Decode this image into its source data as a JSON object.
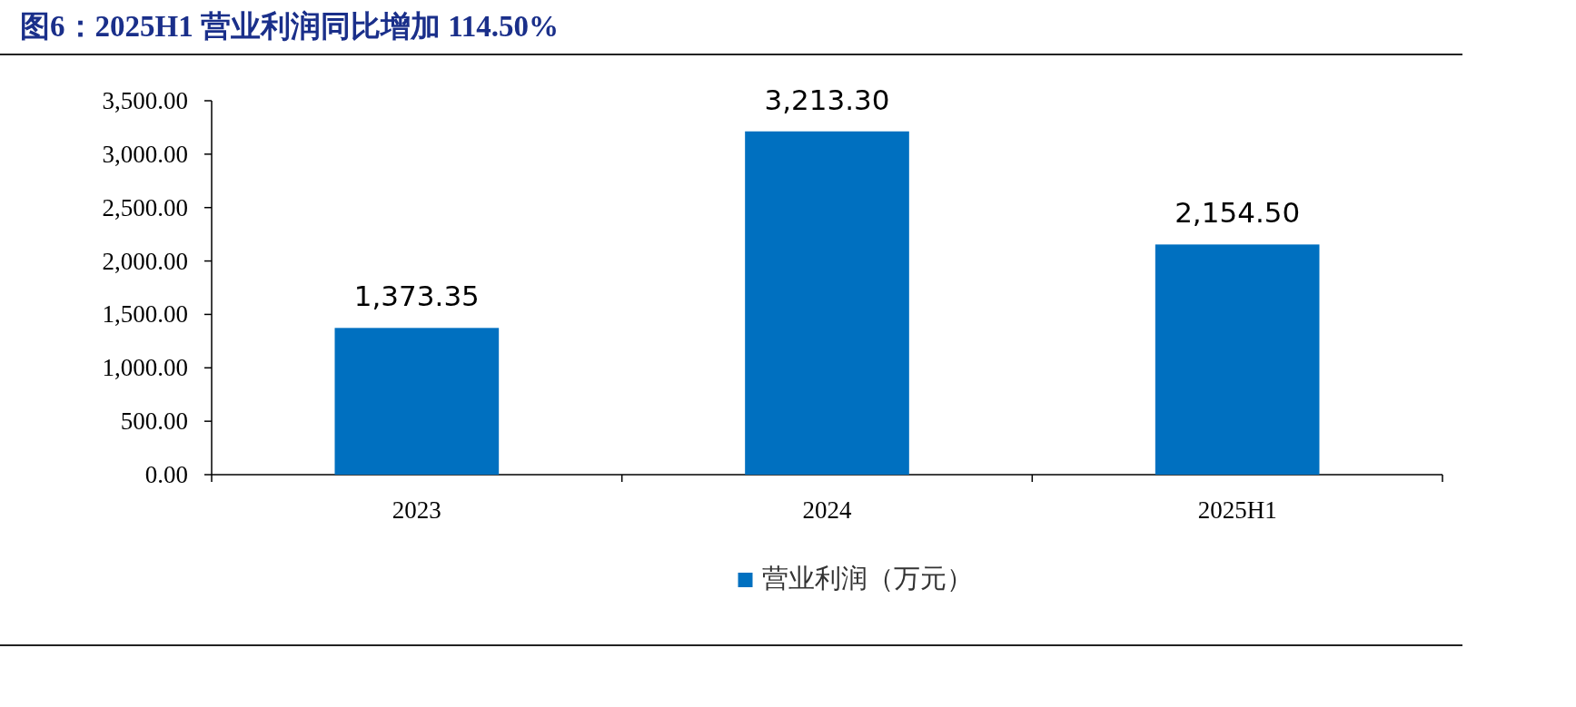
{
  "chart_data": {
    "type": "bar",
    "title": "图6：2025H1 营业利润同比增加 114.50%",
    "categories": [
      "2023",
      "2024",
      "2025H1"
    ],
    "series": [
      {
        "name": "营业利润（万元）",
        "color": "#0070c0",
        "values": [
          1373.35,
          3213.3,
          2154.5
        ],
        "value_labels": [
          "1,373.35",
          "3,213.30",
          "2,154.50"
        ]
      }
    ],
    "ylim": [
      0,
      3500
    ],
    "yticks": [
      {
        "value": 0,
        "label": "0.00"
      },
      {
        "value": 500,
        "label": "500.00"
      },
      {
        "value": 1000,
        "label": "1,000.00"
      },
      {
        "value": 1500,
        "label": "1,500.00"
      },
      {
        "value": 2000,
        "label": "2,000.00"
      },
      {
        "value": 2500,
        "label": "2,500.00"
      },
      {
        "value": 3000,
        "label": "3,000.00"
      },
      {
        "value": 3500,
        "label": "3,500.00"
      }
    ],
    "grid": false,
    "legend": "bottom"
  }
}
